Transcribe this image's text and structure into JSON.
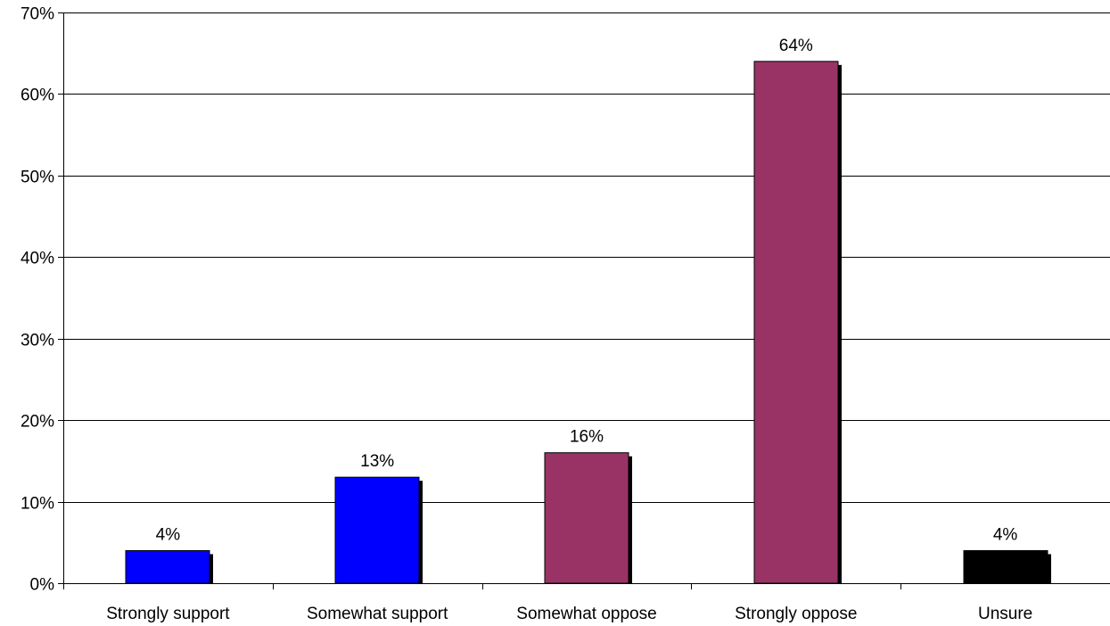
{
  "chart_data": {
    "type": "bar",
    "title": "",
    "xlabel": "",
    "ylabel": "",
    "categories": [
      "Strongly support",
      "Somewhat support",
      "Somewhat oppose",
      "Strongly oppose",
      "Unsure"
    ],
    "values": [
      4,
      13,
      16,
      64,
      4
    ],
    "data_labels": [
      "4%",
      "13%",
      "16%",
      "64%",
      "4%"
    ],
    "bar_colors": [
      "#0000ff",
      "#0000ff",
      "#993366",
      "#993366",
      "#000000"
    ],
    "shadow_color": "#000000",
    "ylim": [
      0,
      70
    ],
    "y_ticks": [
      0,
      10,
      20,
      30,
      40,
      50,
      60,
      70
    ],
    "y_tick_labels": [
      "0%",
      "10%",
      "20%",
      "30%",
      "40%",
      "50%",
      "60%",
      "70%"
    ],
    "grid": true,
    "legend": "none"
  }
}
